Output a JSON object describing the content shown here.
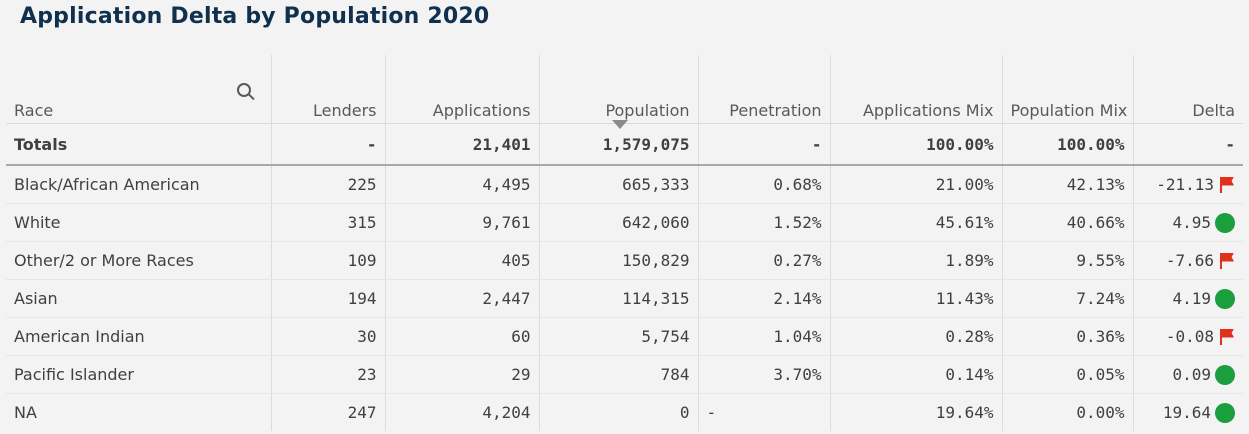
{
  "title": "Application Delta by Population 2020",
  "columns": [
    "Race",
    "Lenders",
    "Applications",
    "Population",
    "Penetration",
    "Applications Mix",
    "Population Mix",
    "Delta"
  ],
  "totals": {
    "label": "Totals",
    "lenders": "-",
    "applications": "21,401",
    "population": "1,579,075",
    "penetration": "-",
    "applications_mix": "100.00%",
    "population_mix": "100.00%",
    "delta": "-"
  },
  "rows": [
    {
      "race": "Black/African American",
      "lenders": "225",
      "applications": "4,495",
      "population": "665,333",
      "penetration": "0.68%",
      "applications_mix": "21.00%",
      "population_mix": "42.13%",
      "delta": "-21.13",
      "indicator": "flag-icon"
    },
    {
      "race": "White",
      "lenders": "315",
      "applications": "9,761",
      "population": "642,060",
      "penetration": "1.52%",
      "applications_mix": "45.61%",
      "population_mix": "40.66%",
      "delta": "4.95",
      "indicator": "dot-icon"
    },
    {
      "race": "Other/2 or More Races",
      "lenders": "109",
      "applications": "405",
      "population": "150,829",
      "penetration": "0.27%",
      "applications_mix": "1.89%",
      "population_mix": "9.55%",
      "delta": "-7.66",
      "indicator": "flag-icon"
    },
    {
      "race": "Asian",
      "lenders": "194",
      "applications": "2,447",
      "population": "114,315",
      "penetration": "2.14%",
      "applications_mix": "11.43%",
      "population_mix": "7.24%",
      "delta": "4.19",
      "indicator": "dot-icon"
    },
    {
      "race": "American Indian",
      "lenders": "30",
      "applications": "60",
      "population": "5,754",
      "penetration": "1.04%",
      "applications_mix": "0.28%",
      "population_mix": "0.36%",
      "delta": "-0.08",
      "indicator": "flag-icon"
    },
    {
      "race": "Pacific Islander",
      "lenders": "23",
      "applications": "29",
      "population": "784",
      "penetration": "3.70%",
      "applications_mix": "0.14%",
      "population_mix": "0.05%",
      "delta": "0.09",
      "indicator": "dot-icon"
    },
    {
      "race": "NA",
      "lenders": "247",
      "applications": "4,204",
      "population": "0",
      "penetration": "-",
      "applications_mix": "19.64%",
      "population_mix": "0.00%",
      "delta": "19.64",
      "indicator": "dot-icon"
    }
  ],
  "colors": {
    "title": "#10304e",
    "flag": "#e0301e",
    "dot": "#1b9e3e",
    "background": "#f3f3f3"
  }
}
